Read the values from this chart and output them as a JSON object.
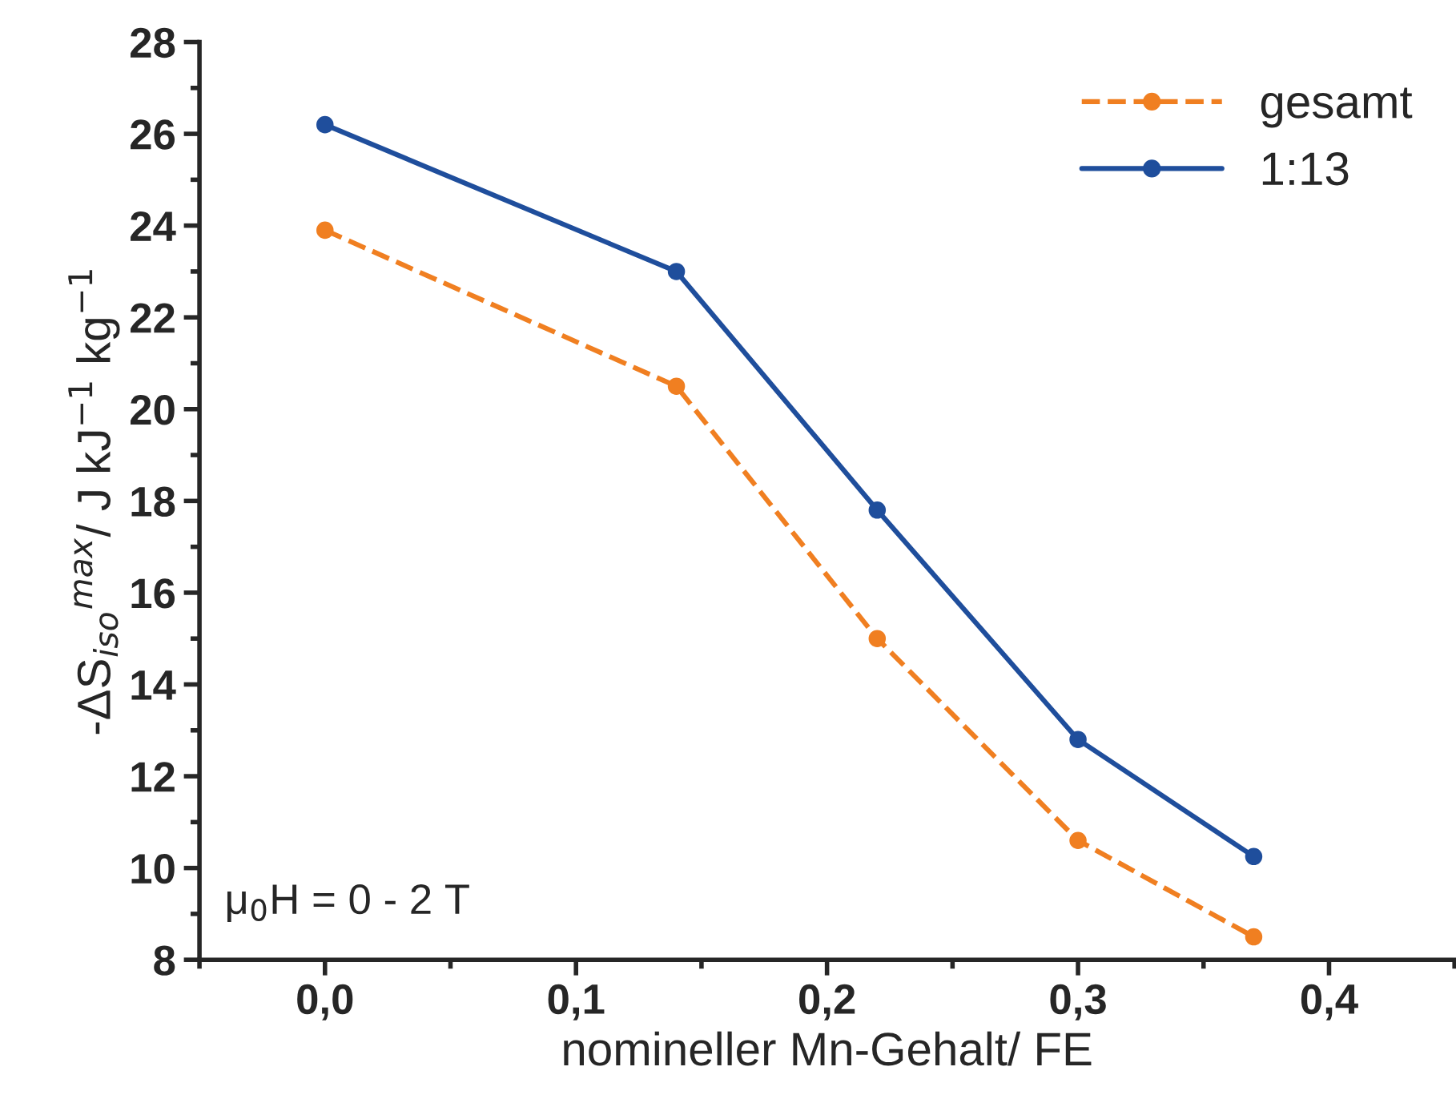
{
  "chart_data": {
    "type": "line",
    "xlabel": "nomineller Mn-Gehalt/ FE",
    "ylabel": "-ΔS$_{iso}$$^{max}$/ J kJ$^{−1}$ kg$^{−1}$",
    "x": [
      0,
      0.14,
      0.22,
      0.3,
      0.37
    ],
    "series": [
      {
        "name": "gesamt",
        "color": "#f07f21",
        "values": [
          23.9,
          20.5,
          15.0,
          10.6,
          8.5
        ],
        "line_style": "dashed"
      },
      {
        "name": "1:13",
        "color": "#1f4e9c",
        "values": [
          26.2,
          23.0,
          17.8,
          12.8,
          10.25
        ],
        "line_style": "solid"
      }
    ],
    "xlim": [
      -0.05,
      0.45
    ],
    "xticks": [
      {
        "value": 0,
        "label": "0,0"
      },
      {
        "value": 0.1,
        "label": "0,1"
      },
      {
        "value": 0.2,
        "label": "0,2"
      },
      {
        "value": 0.3,
        "label": "0,3"
      },
      {
        "value": 0.4,
        "label": "0,4"
      }
    ],
    "ylim": [
      8,
      28
    ],
    "yticks": [
      8,
      10,
      12,
      14,
      16,
      18,
      20,
      22,
      24,
      26,
      28
    ],
    "annotations": [
      "μ$_{0}$H = 0 - 2 T"
    ],
    "marker": "circle",
    "legend": "top right",
    "grid": false
  }
}
